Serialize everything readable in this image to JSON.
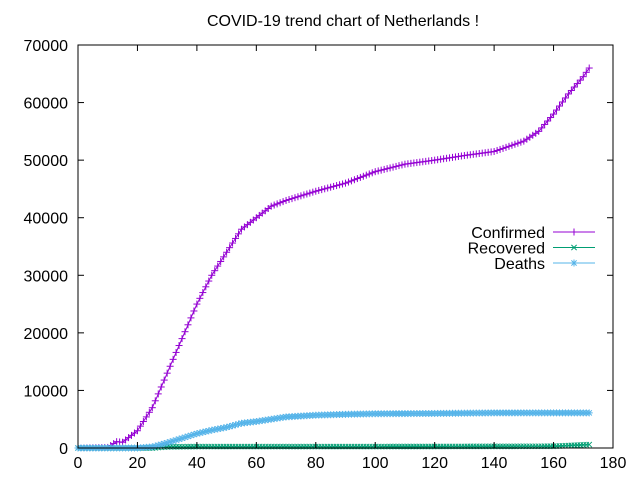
{
  "chart_data": {
    "type": "line",
    "title": "COVID-19 trend chart of Netherlands !",
    "xlabel": "",
    "ylabel": "",
    "xlim": [
      0,
      180
    ],
    "ylim": [
      0,
      70000
    ],
    "x_ticks": [
      0,
      20,
      40,
      60,
      80,
      100,
      120,
      140,
      160,
      180
    ],
    "y_ticks": [
      0,
      10000,
      20000,
      30000,
      40000,
      50000,
      60000,
      70000
    ],
    "x_tick_labels": [
      "0",
      "20",
      "40",
      "60",
      "80",
      "100",
      "120",
      "140",
      "160",
      "180"
    ],
    "y_tick_labels": [
      "0",
      "10000",
      "20000",
      "30000",
      "40000",
      "50000",
      "60000",
      "70000"
    ],
    "grid": false,
    "legend_position": "right",
    "series": [
      {
        "name": "Confirmed",
        "color": "#9400d3",
        "marker": "plus",
        "points": [
          [
            0,
            0
          ],
          [
            10,
            100
          ],
          [
            13,
            1100
          ],
          [
            15,
            1000
          ],
          [
            20,
            3000
          ],
          [
            25,
            7000
          ],
          [
            30,
            13000
          ],
          [
            35,
            19000
          ],
          [
            40,
            25000
          ],
          [
            45,
            30000
          ],
          [
            50,
            34000
          ],
          [
            55,
            38000
          ],
          [
            60,
            40000
          ],
          [
            65,
            42000
          ],
          [
            70,
            43000
          ],
          [
            80,
            44600
          ],
          [
            90,
            46000
          ],
          [
            100,
            48000
          ],
          [
            110,
            49300
          ],
          [
            120,
            50000
          ],
          [
            130,
            50800
          ],
          [
            140,
            51500
          ],
          [
            150,
            53300
          ],
          [
            155,
            55000
          ],
          [
            160,
            58000
          ],
          [
            165,
            61500
          ],
          [
            170,
            64500
          ],
          [
            172,
            66000
          ]
        ]
      },
      {
        "name": "Recovered",
        "color": "#009e73",
        "marker": "cross",
        "points": [
          [
            0,
            0
          ],
          [
            25,
            0
          ],
          [
            30,
            200
          ],
          [
            40,
            250
          ],
          [
            100,
            250
          ],
          [
            160,
            300
          ],
          [
            172,
            600
          ]
        ]
      },
      {
        "name": "Deaths",
        "color": "#56b4e9",
        "marker": "asterisk",
        "points": [
          [
            0,
            0
          ],
          [
            20,
            0
          ],
          [
            25,
            200
          ],
          [
            30,
            900
          ],
          [
            35,
            1700
          ],
          [
            40,
            2500
          ],
          [
            45,
            3100
          ],
          [
            50,
            3600
          ],
          [
            55,
            4300
          ],
          [
            60,
            4600
          ],
          [
            65,
            5000
          ],
          [
            70,
            5400
          ],
          [
            80,
            5700
          ],
          [
            90,
            5850
          ],
          [
            100,
            5950
          ],
          [
            120,
            6000
          ],
          [
            140,
            6100
          ],
          [
            172,
            6100
          ]
        ]
      }
    ]
  }
}
